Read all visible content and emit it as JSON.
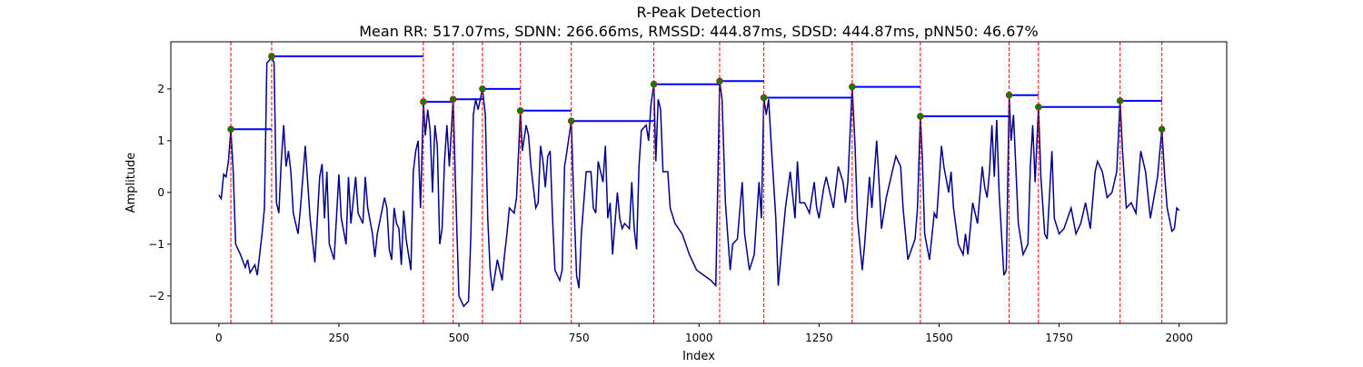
{
  "chart_data": {
    "type": "line",
    "title": "R-Peak Detection",
    "subtitle": "Mean RR: 517.07ms, SDNN: 266.66ms, RMSSD: 444.87ms, SDSD: 444.87ms, pNN50: 46.67%",
    "xlabel": "Index",
    "ylabel": "Amplitude",
    "xlim": [
      -100,
      2099
    ],
    "ylim": [
      -2.53,
      2.91
    ],
    "xticks": [
      0,
      250,
      500,
      750,
      1000,
      1250,
      1500,
      1750,
      2000
    ],
    "yticks": [
      {
        "value": -2,
        "label": "−2"
      },
      {
        "value": -1,
        "label": "−1"
      },
      0,
      1,
      2
    ],
    "signal": {
      "color": "#00008b",
      "x": [
        0,
        5,
        10,
        15,
        20,
        25,
        30,
        35,
        45,
        55,
        60,
        65,
        75,
        80,
        90,
        95,
        100,
        105,
        110,
        115,
        120,
        125,
        130,
        135,
        140,
        145,
        150,
        155,
        165,
        170,
        180,
        190,
        200,
        210,
        215,
        220,
        225,
        230,
        240,
        250,
        255,
        265,
        270,
        275,
        285,
        290,
        300,
        305,
        310,
        320,
        325,
        330,
        345,
        350,
        355,
        360,
        365,
        370,
        375,
        380,
        385,
        390,
        400,
        405,
        410,
        415,
        420,
        426,
        430,
        435,
        440,
        445,
        450,
        455,
        460,
        465,
        470,
        475,
        480,
        488,
        493,
        500,
        510,
        520,
        525,
        530,
        535,
        540,
        549,
        555,
        560,
        565,
        570,
        580,
        590,
        595,
        600,
        605,
        615,
        620,
        628,
        632,
        640,
        645,
        650,
        660,
        665,
        670,
        675,
        680,
        685,
        690,
        695,
        700,
        710,
        715,
        720,
        725,
        734,
        738,
        745,
        750,
        755,
        760,
        765,
        775,
        780,
        785,
        790,
        800,
        805,
        810,
        815,
        820,
        825,
        830,
        835,
        840,
        845,
        855,
        860,
        865,
        870,
        875,
        880,
        890,
        895,
        900,
        906,
        910,
        915,
        920,
        925,
        935,
        940,
        950,
        965,
        980,
        995,
        1010,
        1025,
        1035,
        1040,
        1043,
        1048,
        1055,
        1065,
        1070,
        1080,
        1090,
        1095,
        1105,
        1115,
        1125,
        1130,
        1135,
        1140,
        1145,
        1150,
        1160,
        1165,
        1175,
        1180,
        1190,
        1200,
        1205,
        1210,
        1220,
        1230,
        1240,
        1245,
        1250,
        1260,
        1265,
        1270,
        1280,
        1290,
        1300,
        1305,
        1310,
        1319,
        1325,
        1330,
        1340,
        1345,
        1355,
        1360,
        1370,
        1375,
        1380,
        1390,
        1400,
        1410,
        1420,
        1425,
        1435,
        1450,
        1455,
        1461,
        1465,
        1470,
        1480,
        1490,
        1495,
        1505,
        1510,
        1520,
        1525,
        1530,
        1540,
        1550,
        1555,
        1560,
        1570,
        1580,
        1590,
        1595,
        1600,
        1605,
        1610,
        1615,
        1620,
        1625,
        1635,
        1640,
        1646,
        1650,
        1655,
        1665,
        1675,
        1685,
        1690,
        1695,
        1700,
        1707,
        1712,
        1720,
        1725,
        1735,
        1740,
        1750,
        1760,
        1775,
        1785,
        1795,
        1805,
        1815,
        1825,
        1830,
        1840,
        1850,
        1860,
        1870,
        1877,
        1882,
        1890,
        1900,
        1910,
        1920,
        1930,
        1940,
        1955,
        1964,
        1970,
        1975,
        1985,
        1990,
        1995,
        2000
      ],
      "y": [
        -0.05,
        -0.12,
        0.35,
        0.3,
        0.6,
        1.22,
        0.4,
        -1.0,
        -1.2,
        -1.45,
        -1.3,
        -1.55,
        -1.4,
        -1.6,
        -0.8,
        -0.3,
        2.5,
        2.55,
        2.63,
        2.5,
        -0.2,
        -0.4,
        0.6,
        1.3,
        0.5,
        0.8,
        0.4,
        -0.4,
        -0.8,
        -0.3,
        0.9,
        -0.5,
        -1.35,
        0.3,
        0.55,
        -0.5,
        0.4,
        -1.0,
        -1.3,
        0.35,
        -0.5,
        -1.0,
        0.3,
        -0.6,
        0.3,
        -0.4,
        -0.6,
        0.3,
        -0.3,
        -0.8,
        -1.25,
        -0.8,
        -0.1,
        -0.3,
        -1.1,
        -1.3,
        -0.3,
        -0.6,
        -0.7,
        -1.4,
        -0.35,
        -0.9,
        -1.5,
        0.4,
        0.8,
        1.0,
        -0.3,
        1.75,
        1.1,
        1.6,
        1.2,
        0.0,
        1.3,
        0.9,
        -1.0,
        -0.7,
        0.6,
        1.3,
        0.5,
        1.8,
        0.1,
        -2.0,
        -2.2,
        -2.1,
        -0.8,
        1.5,
        1.8,
        1.6,
        2.0,
        1.5,
        -0.5,
        -1.5,
        -1.9,
        -1.3,
        -1.7,
        -1.2,
        -0.8,
        -0.3,
        -0.4,
        -0.1,
        1.58,
        0.8,
        1.3,
        1.1,
        0.5,
        -0.3,
        -0.2,
        0.9,
        0.6,
        0.1,
        0.7,
        0.8,
        -0.5,
        -1.5,
        -1.7,
        -1.5,
        0.5,
        0.8,
        1.38,
        0.2,
        -1.6,
        -1.85,
        -0.8,
        -0.2,
        0.4,
        0.4,
        -0.3,
        -0.4,
        0.6,
        0.2,
        0.9,
        -0.5,
        -0.2,
        -1.2,
        -0.6,
        0.0,
        -0.5,
        -0.7,
        -0.6,
        -0.7,
        0.2,
        -0.7,
        -1.1,
        0.5,
        1.2,
        1.3,
        1.0,
        1.7,
        2.09,
        0.6,
        1.8,
        1.6,
        0.4,
        0.4,
        -0.3,
        -0.6,
        -0.8,
        -1.2,
        -1.5,
        -1.6,
        -1.7,
        -1.8,
        0.6,
        2.15,
        1.8,
        -0.2,
        -1.5,
        -1.0,
        -0.9,
        0.2,
        -0.8,
        -1.5,
        -1.2,
        0.2,
        -0.5,
        1.83,
        1.5,
        1.8,
        1.0,
        -0.5,
        -1.8,
        -0.8,
        -0.3,
        0.4,
        -0.5,
        0.6,
        -0.2,
        -0.2,
        -0.4,
        0.2,
        -0.3,
        -0.5,
        0.1,
        0.3,
        0.1,
        -0.3,
        0.5,
        0.2,
        -0.2,
        0.2,
        2.04,
        0.9,
        -0.5,
        -1.5,
        -1.0,
        0.3,
        -0.3,
        1.0,
        0.2,
        -0.7,
        -0.1,
        0.3,
        0.7,
        0.5,
        -0.3,
        -1.3,
        -0.9,
        -0.3,
        1.47,
        0.7,
        -0.8,
        -1.3,
        -0.4,
        -0.5,
        0.9,
        0.5,
        0.0,
        0.4,
        -0.3,
        -1.0,
        -1.2,
        -0.8,
        -1.2,
        -0.2,
        -0.6,
        0.5,
        0.1,
        -0.1,
        0.4,
        1.3,
        0.3,
        1.4,
        0.0,
        -1.6,
        -1.5,
        1.88,
        1.0,
        1.5,
        -0.6,
        -1.2,
        -1.0,
        0.5,
        1.3,
        0.2,
        1.65,
        0.3,
        -0.8,
        -0.9,
        0.8,
        -0.5,
        -0.8,
        -0.7,
        -0.3,
        -0.8,
        -0.6,
        -0.2,
        -0.7,
        0.4,
        0.6,
        0.4,
        -0.1,
        0.0,
        0.4,
        1.77,
        0.8,
        -0.3,
        -0.2,
        -0.4,
        0.8,
        0.4,
        -0.5,
        0.3,
        1.22,
        0.3,
        -0.3,
        -0.75,
        -0.7,
        -0.3,
        -0.35
      ]
    },
    "peaks": {
      "marker_color": "#008000",
      "edge_color": "#ff0000",
      "line_color": "#0000ff",
      "vline_color": "#ff0000",
      "x": [
        25,
        110,
        426,
        488,
        549,
        628,
        734,
        906,
        1043,
        1135,
        1319,
        1461,
        1646,
        1707,
        1877,
        1964
      ],
      "y": [
        1.22,
        2.63,
        1.75,
        1.8,
        2.0,
        1.58,
        1.38,
        2.09,
        2.15,
        1.83,
        2.04,
        1.47,
        1.88,
        1.65,
        1.77,
        1.22
      ]
    }
  }
}
